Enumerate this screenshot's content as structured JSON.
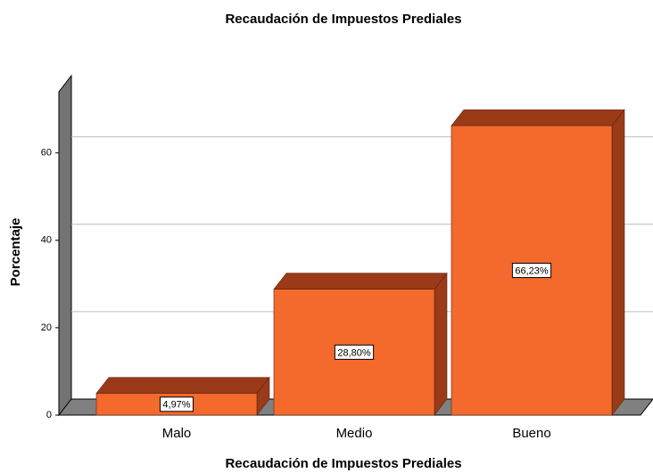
{
  "chart_data": {
    "type": "bar3d",
    "title": "Recaudación de Impuestos Prediales",
    "x_label": "Recaudación de Impuestos Prediales",
    "y_label": "Porcentaje",
    "categories": [
      "Malo",
      "Medio",
      "Bueno"
    ],
    "values": [
      4.97,
      28.8,
      66.23
    ],
    "value_labels": [
      "4,97%",
      "28,80%",
      "66,23%"
    ],
    "color": "#f4692c",
    "ylim": [
      0,
      74
    ],
    "yticks": [
      0,
      20,
      40,
      60
    ],
    "grid": true
  }
}
